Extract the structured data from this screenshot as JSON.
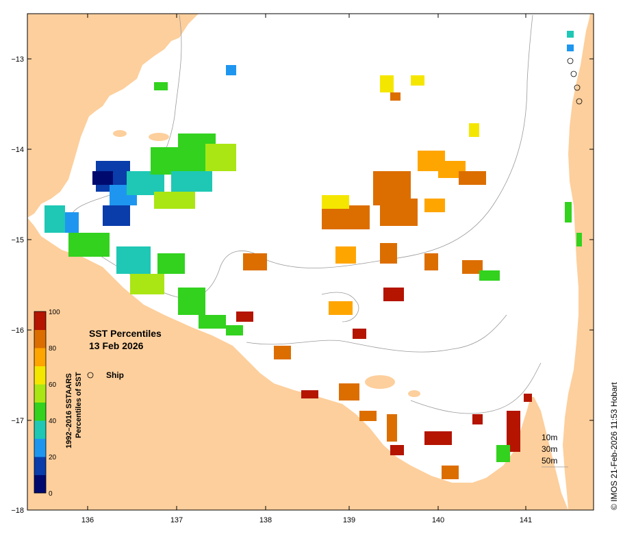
{
  "map": {
    "title": "SST Percentiles",
    "date": "13 Feb 2026",
    "ship_label": "Ship",
    "credit": "© IMOS 21-Feb-2026 11:53 Hobart",
    "lon_ticks": [
      "136",
      "137",
      "138",
      "139",
      "140",
      "141"
    ],
    "lat_ticks": [
      "−13",
      "−14",
      "−15",
      "−16",
      "−17",
      "−18"
    ],
    "colorbar": {
      "title_line1": "1992–2016 SSTAARS",
      "title_line2": "Percentiles of SST",
      "tick_labels": [
        "0",
        "20",
        "40",
        "60",
        "80",
        "100"
      ],
      "colors": [
        "#000a6e",
        "#0a3caa",
        "#1e96f0",
        "#1ec8b4",
        "#32d21e",
        "#aae614",
        "#f5e600",
        "#ffa500",
        "#dc6e00",
        "#b41400"
      ]
    },
    "depth_legend": [
      "10m",
      "30m",
      "50m"
    ],
    "land_color": "#fdcf9c"
  }
}
